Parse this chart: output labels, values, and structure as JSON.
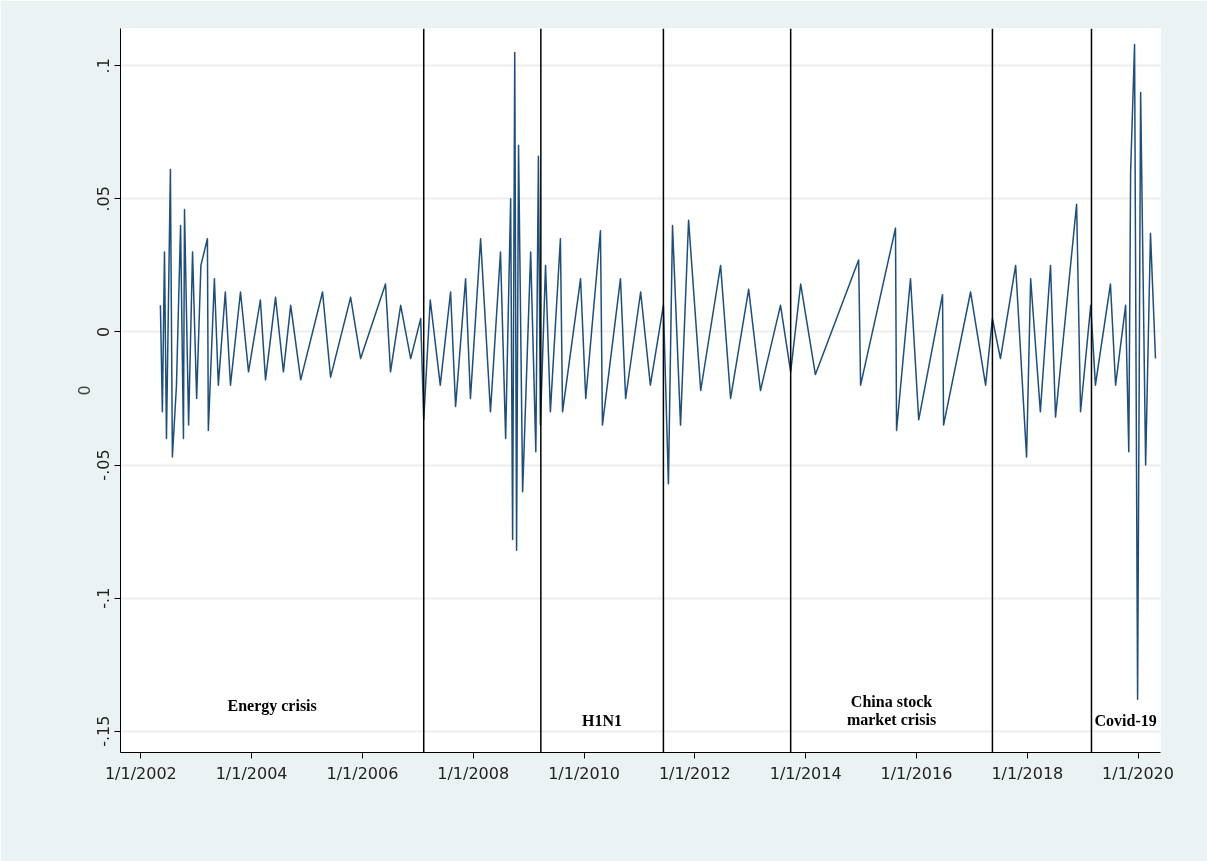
{
  "chart_data": {
    "type": "line",
    "ylabel": "0",
    "x": [
      "2002-05-10",
      "2002-05-23",
      "2002-06-06",
      "2002-06-19",
      "2002-07-15",
      "2002-07-28",
      "2002-08-24",
      "2002-09-20",
      "2002-10-09",
      "2002-10-16",
      "2002-11-12",
      "2002-12-08",
      "2003-01-04",
      "2003-02-01",
      "2003-03-16",
      "2003-03-22",
      "2003-05-01",
      "2003-05-27",
      "2003-07-12",
      "2003-08-15",
      "2003-10-20",
      "2003-12-12",
      "2004-02-28",
      "2004-04-02",
      "2004-06-07",
      "2004-07-29",
      "2004-09-15",
      "2004-11-20",
      "2005-04-13",
      "2005-06-05",
      "2005-10-15",
      "2005-12-20",
      "2006-06-02",
      "2006-07-05",
      "2006-09-10",
      "2006-11-15",
      "2007-01-20",
      "2007-02-09",
      "2007-03-24",
      "2007-05-29",
      "2007-08-05",
      "2007-09-07",
      "2007-11-12",
      "2007-12-14",
      "2008-02-19",
      "2008-04-24",
      "2008-06-29",
      "2008-08-02",
      "2008-09-04",
      "2008-09-17",
      "2008-10-01",
      "2008-10-13",
      "2008-10-26",
      "2008-11-22",
      "2009-01-14",
      "2009-02-17",
      "2009-03-06",
      "2009-03-19",
      "2009-04-22",
      "2009-05-24",
      "2009-07-29",
      "2009-08-12",
      "2009-12-09",
      "2010-01-12",
      "2010-04-19",
      "2010-05-02",
      "2010-08-29",
      "2010-10-02",
      "2011-01-09",
      "2011-03-14",
      "2011-06-08",
      "2011-07-11",
      "2011-08-07",
      "2011-09-29",
      "2011-11-21",
      "2012-02-09",
      "2012-06-19",
      "2012-08-24",
      "2012-12-21",
      "2013-03-09",
      "2013-07-19",
      "2013-09-24",
      "2013-11-29",
      "2014-03-06",
      "2014-12-16",
      "2014-12-29",
      "2015-08-16",
      "2015-08-23",
      "2015-11-23",
      "2016-01-16",
      "2016-06-21",
      "2016-06-28",
      "2016-12-23",
      "2017-04-01",
      "2017-05-16",
      "2017-07-08",
      "2017-10-16",
      "2017-12-27",
      "2018-01-23",
      "2018-03-28",
      "2018-06-03",
      "2018-07-06",
      "2018-11-22",
      "2018-12-18",
      "2019-02-23",
      "2019-03-26",
      "2019-07-03",
      "2019-08-06",
      "2019-10-11",
      "2019-11-01",
      "2019-11-13",
      "2019-12-09",
      "2019-12-29",
      "2020-01-18",
      "2020-02-20",
      "2020-03-23",
      "2020-04-25"
    ],
    "series": [
      {
        "color": "#1f4e79",
        "values": [
          0.01,
          -0.03,
          0.03,
          -0.04,
          0.061,
          -0.047,
          -0.02,
          0.04,
          -0.04,
          0.046,
          -0.035,
          0.03,
          -0.025,
          0.025,
          0.035,
          -0.037,
          0.02,
          -0.02,
          0.015,
          -0.02,
          0.015,
          -0.015,
          0.012,
          -0.018,
          0.013,
          -0.015,
          0.01,
          -0.018,
          0.015,
          -0.017,
          0.013,
          -0.01,
          0.018,
          -0.015,
          0.01,
          -0.01,
          0.005,
          -0.033,
          0.012,
          -0.02,
          0.015,
          -0.028,
          0.02,
          -0.025,
          0.035,
          -0.03,
          0.03,
          -0.04,
          0.05,
          -0.078,
          0.105,
          -0.082,
          0.07,
          -0.06,
          0.03,
          -0.045,
          0.066,
          -0.035,
          0.025,
          -0.03,
          0.035,
          -0.03,
          0.02,
          -0.025,
          0.038,
          -0.035,
          0.02,
          -0.025,
          0.015,
          -0.02,
          0.01,
          -0.057,
          0.04,
          -0.035,
          0.042,
          -0.022,
          0.025,
          -0.025,
          0.016,
          -0.022,
          0.01,
          -0.015,
          0.018,
          -0.016,
          0.027,
          -0.02,
          0.039,
          -0.037,
          0.02,
          -0.033,
          0.014,
          -0.035,
          0.015,
          -0.02,
          0.005,
          -0.01,
          0.025,
          -0.047,
          0.02,
          -0.03,
          0.025,
          -0.032,
          0.048,
          -0.03,
          0.01,
          -0.02,
          0.018,
          -0.02,
          0.01,
          -0.045,
          0.06,
          0.108,
          -0.138,
          0.09,
          -0.05,
          0.037,
          -0.01
        ]
      }
    ],
    "xlim": [
      "2001-08-20",
      "2020-05-28"
    ],
    "xticks": [
      {
        "value": "2002-01-01",
        "label": "1/1/2002"
      },
      {
        "value": "2004-01-01",
        "label": "1/1/2004"
      },
      {
        "value": "2006-01-01",
        "label": "1/1/2006"
      },
      {
        "value": "2008-01-01",
        "label": "1/1/2008"
      },
      {
        "value": "2010-01-01",
        "label": "1/1/2010"
      },
      {
        "value": "2012-01-01",
        "label": "1/1/2012"
      },
      {
        "value": "2014-01-01",
        "label": "1/1/2014"
      },
      {
        "value": "2016-01-01",
        "label": "1/1/2016"
      },
      {
        "value": "2018-01-01",
        "label": "1/1/2018"
      },
      {
        "value": "2020-01-01",
        "label": "1/1/2020"
      }
    ],
    "ylim": [
      -0.158,
      0.114
    ],
    "yticks": [
      {
        "value": -0.15,
        "label": "-.15"
      },
      {
        "value": -0.1,
        "label": "-.1"
      },
      {
        "value": -0.05,
        "label": "-.05"
      },
      0,
      {
        "value": 0.05,
        "label": ".05"
      },
      {
        "value": 0.1,
        "label": ".1"
      }
    ],
    "grid": "y",
    "marker": "none",
    "line_style": "solid",
    "ref_lines": [
      {
        "axis": "x",
        "value": "2007-02-09",
        "color": "#000000"
      },
      {
        "axis": "x",
        "value": "2009-03-22",
        "color": "#000000"
      },
      {
        "axis": "x",
        "value": "2011-06-08",
        "color": "#000000"
      },
      {
        "axis": "x",
        "value": "2013-09-24",
        "color": "#000000"
      },
      {
        "axis": "x",
        "value": "2017-05-16",
        "color": "#000000"
      },
      {
        "axis": "x",
        "value": "2019-02-28",
        "color": "#000000"
      }
    ],
    "annotations": [
      "Energy crisis",
      "H1N1",
      "China stock\nmarket crisis",
      "Covid-19"
    ]
  }
}
